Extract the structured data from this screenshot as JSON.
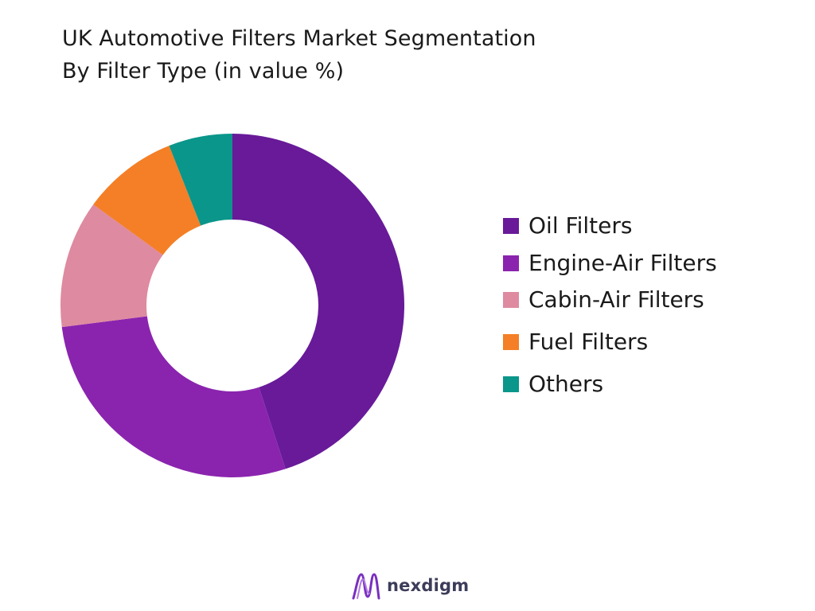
{
  "title": {
    "line1": "UK Automotive Filters Market Segmentation",
    "line2": "By Filter Type (in value %)"
  },
  "chart_data": {
    "type": "pie",
    "variant": "donut",
    "title": "UK Automotive Filters Market Segmentation By Filter Type (in value %)",
    "start_angle_deg": 0,
    "direction": "clockwise",
    "legend_position": "right",
    "categories": [
      "Oil Filters",
      "Engine-Air Filters",
      "Cabin-Air Filters",
      "Fuel Filters",
      "Others"
    ],
    "values": [
      45,
      28,
      12,
      9,
      6
    ],
    "colors": [
      "#681a99",
      "#8a24ae",
      "#de8aa0",
      "#f47f26",
      "#0a968a"
    ]
  },
  "legend": [
    {
      "label": "Oil Filters",
      "color": "#681a99"
    },
    {
      "label": "Engine-Air Filters",
      "color": "#8a24ae"
    },
    {
      "label": "Cabin-Air Filters",
      "color": "#de8aa0"
    },
    {
      "label": "Fuel Filters",
      "color": "#f47f26"
    },
    {
      "label": "Others",
      "color": "#0a968a"
    }
  ],
  "brand": {
    "name": "nexdigm",
    "logo_icon": "nexdigm-logo-icon",
    "logo_color": "#7a2fbf"
  }
}
